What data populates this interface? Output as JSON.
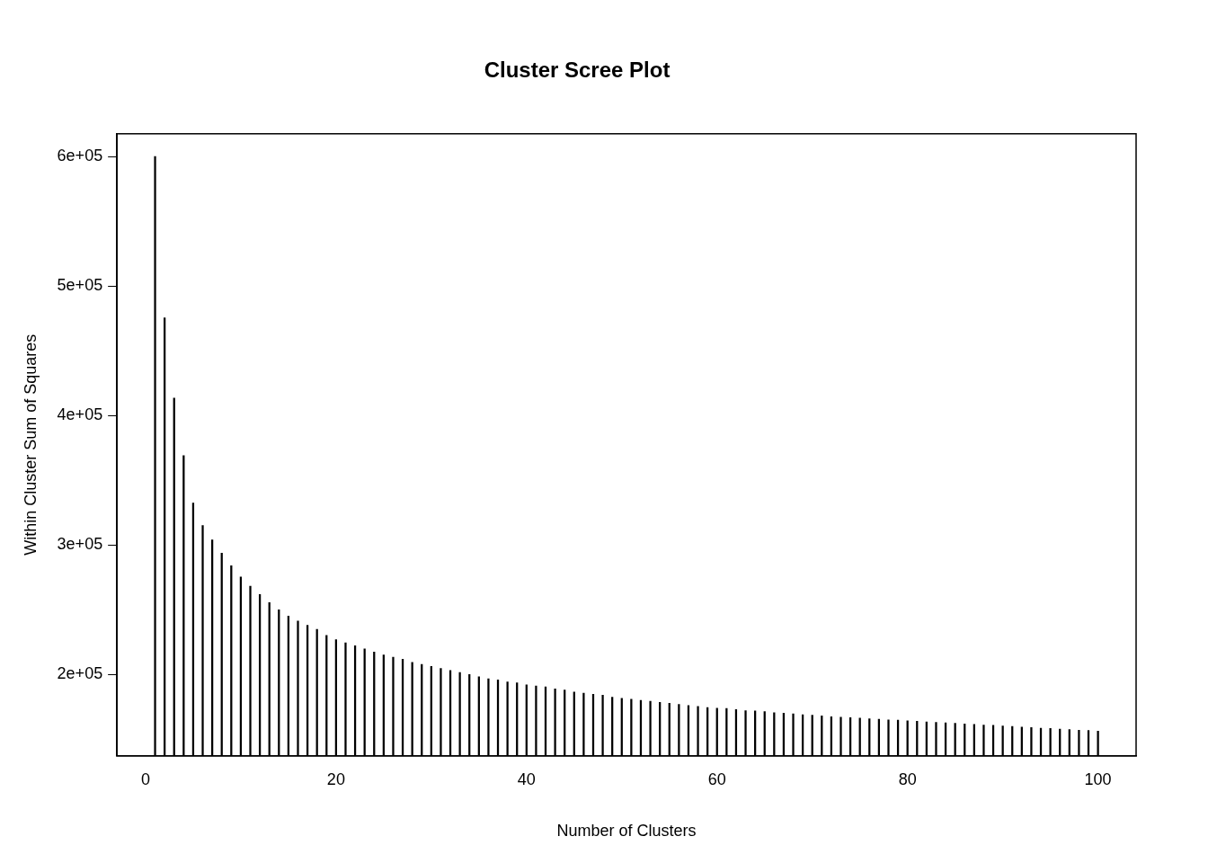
{
  "chart_data": {
    "type": "bar",
    "title": "Cluster Scree Plot",
    "x_label": "Number of Clusters",
    "y_label": "Within Cluster Sum of Squares",
    "x": [
      1,
      2,
      3,
      4,
      5,
      6,
      7,
      8,
      9,
      10,
      11,
      12,
      13,
      14,
      15,
      16,
      17,
      18,
      19,
      20,
      21,
      22,
      23,
      24,
      25,
      26,
      27,
      28,
      29,
      30,
      31,
      32,
      33,
      34,
      35,
      36,
      37,
      38,
      39,
      40,
      41,
      42,
      43,
      44,
      45,
      46,
      47,
      48,
      49,
      50,
      51,
      52,
      53,
      54,
      55,
      56,
      57,
      58,
      59,
      60,
      61,
      62,
      63,
      64,
      65,
      66,
      67,
      68,
      69,
      70,
      71,
      72,
      73,
      74,
      75,
      76,
      77,
      78,
      79,
      80,
      81,
      82,
      83,
      84,
      85,
      86,
      87,
      88,
      89,
      90,
      91,
      92,
      93,
      94,
      95,
      96,
      97,
      98,
      99,
      100
    ],
    "values": [
      600000,
      475400,
      413500,
      369000,
      332500,
      315100,
      304000,
      293700,
      284100,
      275400,
      268300,
      261900,
      255600,
      250000,
      245200,
      241300,
      238100,
      234900,
      230200,
      227000,
      224600,
      222200,
      219800,
      217500,
      215100,
      213500,
      211900,
      209500,
      207900,
      206300,
      204800,
      203200,
      201600,
      200000,
      198400,
      196800,
      196000,
      194400,
      193700,
      192100,
      191300,
      190500,
      188900,
      188100,
      186500,
      185700,
      184900,
      184100,
      182500,
      181700,
      181000,
      180200,
      179400,
      178600,
      177800,
      177000,
      176200,
      175400,
      174600,
      174000,
      173800,
      173000,
      172200,
      172000,
      171400,
      170600,
      170300,
      169800,
      169000,
      168700,
      168200,
      167500,
      167200,
      166700,
      166400,
      165900,
      165600,
      165100,
      164800,
      164300,
      164000,
      163500,
      163200,
      162700,
      162400,
      161900,
      161600,
      161100,
      160800,
      160300,
      160000,
      159500,
      159200,
      158700,
      158400,
      157900,
      157600,
      157100,
      156800,
      156300
    ],
    "color": "#000000",
    "xlim": [
      -3,
      104
    ],
    "xticks": [
      0,
      20,
      40,
      60,
      80,
      100
    ],
    "ylim": [
      137300,
      617500
    ],
    "yticks": [
      {
        "value": 200000,
        "label": "2e+05"
      },
      {
        "value": 300000,
        "label": "3e+05"
      },
      {
        "value": 400000,
        "label": "4e+05"
      },
      {
        "value": 500000,
        "label": "5e+05"
      },
      {
        "value": 600000,
        "label": "6e+05"
      }
    ],
    "grid": false
  }
}
